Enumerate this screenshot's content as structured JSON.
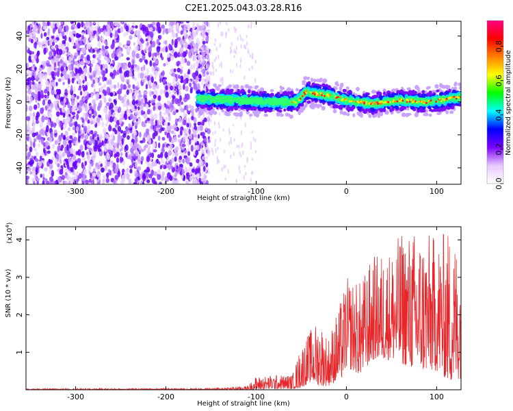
{
  "title": "C2E1.2025.043.03.28.R16",
  "chart_data": [
    {
      "type": "heatmap",
      "xlabel": "Height of straight line (km)",
      "ylabel": "Frequency (Hz)",
      "xlim": [
        -355,
        127
      ],
      "ylim": [
        -50,
        49
      ],
      "xticks": [
        -300,
        -200,
        -100,
        0,
        100
      ],
      "yticks": [
        -40,
        -20,
        0,
        20,
        40
      ],
      "tick_labels_x": [
        "-300",
        "-200",
        "-100",
        "0",
        "100"
      ],
      "tick_labels_y": [
        "-40",
        "-20",
        "0",
        "20",
        "40"
      ],
      "colorbar": {
        "label": "Normalized spectral amplitude",
        "range": [
          0,
          0.95
        ],
        "ticks": [
          0.0,
          0.2,
          0.4,
          0.6,
          0.8
        ],
        "tick_labels": [
          "0.0",
          "0.2",
          "0.4",
          "0.6",
          "0.8"
        ],
        "colors": [
          "#ffffff",
          "#e8c8ff",
          "#7b00ff",
          "#0000ff",
          "#00ffff",
          "#00ff00",
          "#ffff00",
          "#ff8000",
          "#ff0000",
          "#ff0080"
        ]
      },
      "features": {
        "noise_region_x": [
          -355,
          -160
        ],
        "signal_band": [
          {
            "x": -165,
            "y": 2
          },
          {
            "x": -120,
            "y": 1
          },
          {
            "x": -80,
            "y": 0
          },
          {
            "x": -55,
            "y": 0
          },
          {
            "x": -45,
            "y": 6
          },
          {
            "x": -20,
            "y": 4
          },
          {
            "x": 0,
            "y": 1
          },
          {
            "x": 30,
            "y": -1
          },
          {
            "x": 60,
            "y": 1
          },
          {
            "x": 90,
            "y": 0
          },
          {
            "x": 127,
            "y": 3
          }
        ]
      }
    },
    {
      "type": "line",
      "xlabel": "Height of straight line (km)",
      "ylabel": "SNR (10 * v/v)",
      "multiplier_label": "(x10",
      "multiplier_exp": "4",
      "xlim": [
        -355,
        127
      ],
      "ylim": [
        0,
        4.35
      ],
      "xticks": [
        -300,
        -200,
        -100,
        0,
        100
      ],
      "yticks": [
        1,
        2,
        3,
        4
      ],
      "tick_labels_x": [
        "-300",
        "-200",
        "-100",
        "0",
        "100"
      ],
      "tick_labels_y": [
        "1",
        "2",
        "3",
        "4"
      ],
      "series": [
        {
          "color": "#e8262a",
          "envelope": [
            {
              "x": -355,
              "low": 0.0,
              "high": 0.03
            },
            {
              "x": -150,
              "low": 0.0,
              "high": 0.04
            },
            {
              "x": -110,
              "low": 0.0,
              "high": 0.1
            },
            {
              "x": -100,
              "low": 0.0,
              "high": 0.35
            },
            {
              "x": -80,
              "low": 0.02,
              "high": 0.4
            },
            {
              "x": -60,
              "low": 0.02,
              "high": 0.4
            },
            {
              "x": -50,
              "low": 0.05,
              "high": 1.2
            },
            {
              "x": -40,
              "low": 0.2,
              "high": 1.6
            },
            {
              "x": -30,
              "low": 0.1,
              "high": 1.9
            },
            {
              "x": -20,
              "low": 0.1,
              "high": 1.4
            },
            {
              "x": -5,
              "low": 0.3,
              "high": 2.5
            },
            {
              "x": 0,
              "low": 0.6,
              "high": 3.0
            },
            {
              "x": 15,
              "low": 0.4,
              "high": 2.9
            },
            {
              "x": 30,
              "low": 0.8,
              "high": 3.6
            },
            {
              "x": 50,
              "low": 0.8,
              "high": 3.8
            },
            {
              "x": 60,
              "low": 0.7,
              "high": 4.2
            },
            {
              "x": 80,
              "low": 0.5,
              "high": 4.3
            },
            {
              "x": 100,
              "low": 0.5,
              "high": 4.1
            },
            {
              "x": 115,
              "low": 0.2,
              "high": 4.35
            },
            {
              "x": 127,
              "low": 0.3,
              "high": 3.8
            }
          ]
        }
      ]
    }
  ]
}
